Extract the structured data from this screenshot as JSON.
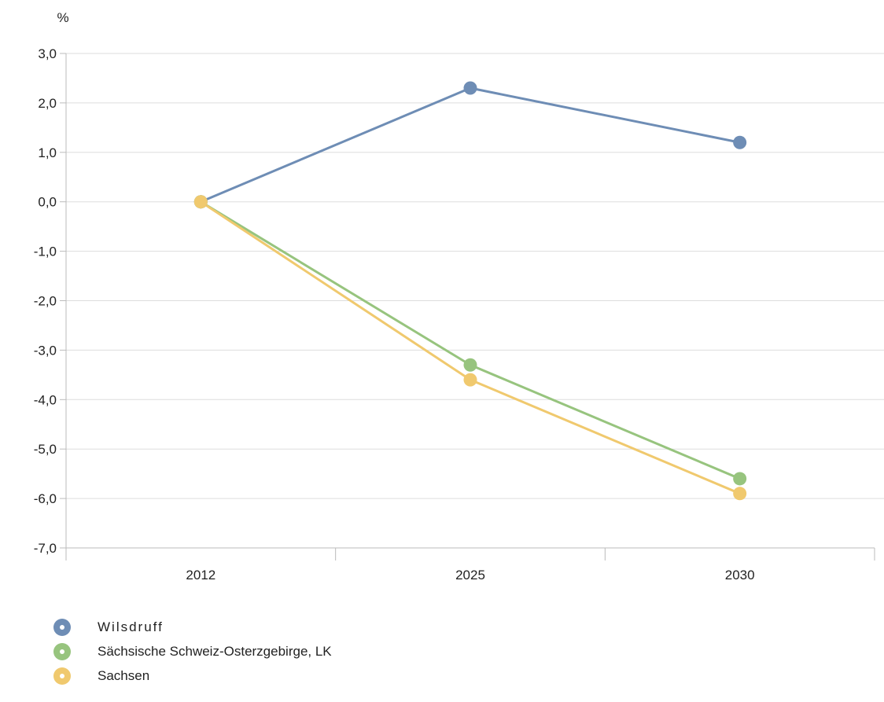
{
  "chart_data": {
    "type": "line",
    "unit_label": "%",
    "categories": [
      "2012",
      "2025",
      "2030"
    ],
    "ylim": [
      -7.0,
      3.0
    ],
    "yticks": [
      "3,0",
      "2,0",
      "1,0",
      "0,0",
      "-1,0",
      "-2,0",
      "-3,0",
      "-4,0",
      "-5,0",
      "-6,0",
      "-7,0"
    ],
    "ytick_values": [
      3,
      2,
      1,
      0,
      -1,
      -2,
      -3,
      -4,
      -5,
      -6,
      -7
    ],
    "grid": true,
    "legend_position": "bottom-left",
    "series": [
      {
        "name": "Wilsdruff",
        "color": "#6e8db5",
        "values": [
          0.0,
          2.3,
          1.2
        ]
      },
      {
        "name": "Sächsische Schweiz-Osterzgebirge, LK",
        "color": "#97c47e",
        "values": [
          0.0,
          -3.3,
          -5.6
        ]
      },
      {
        "name": "Sachsen",
        "color": "#f0c96e",
        "values": [
          0.0,
          -3.6,
          -5.9
        ]
      }
    ]
  }
}
